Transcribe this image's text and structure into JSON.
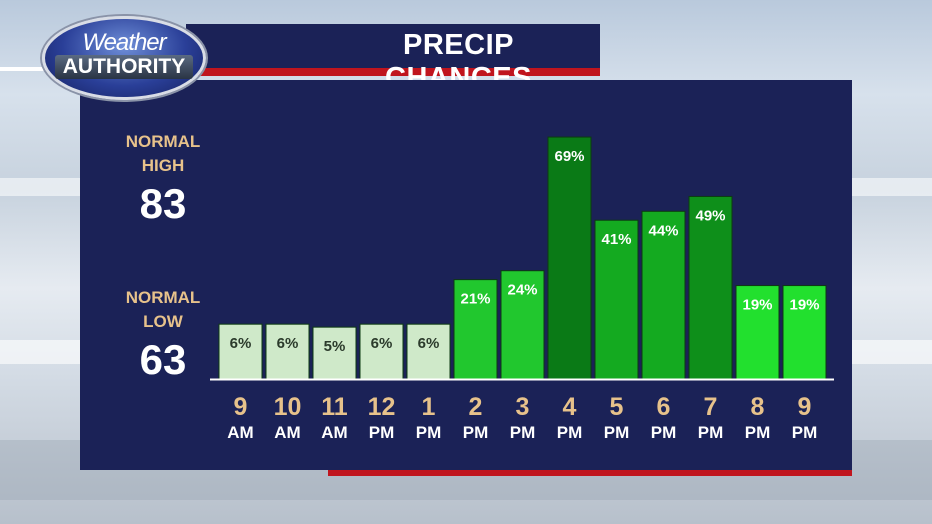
{
  "logo": {
    "line1": "Weather",
    "line2": "AUTHORITY"
  },
  "title": "PRECIP CHANCES",
  "normals": {
    "high_label_1": "NORMAL",
    "high_label_2": "HIGH",
    "high_value": "83",
    "low_label_1": "NORMAL",
    "low_label_2": "LOW",
    "low_value": "63"
  },
  "colors": {
    "panel": "#1b2257",
    "accent_red": "#c0151e",
    "label_gold": "#e7c28b"
  },
  "chart_data": {
    "type": "bar",
    "title": "PRECIP CHANCES",
    "categories": [
      [
        "9",
        "AM"
      ],
      [
        "10",
        "AM"
      ],
      [
        "11",
        "AM"
      ],
      [
        "12",
        "PM"
      ],
      [
        "1",
        "PM"
      ],
      [
        "2",
        "PM"
      ],
      [
        "3",
        "PM"
      ],
      [
        "4",
        "PM"
      ],
      [
        "5",
        "PM"
      ],
      [
        "6",
        "PM"
      ],
      [
        "7",
        "PM"
      ],
      [
        "8",
        "PM"
      ],
      [
        "9",
        "PM"
      ]
    ],
    "values": [
      6,
      6,
      5,
      6,
      6,
      21,
      24,
      69,
      41,
      44,
      49,
      19,
      19
    ],
    "value_labels": [
      "6%",
      "6%",
      "5%",
      "6%",
      "6%",
      "21%",
      "24%",
      "69%",
      "41%",
      "44%",
      "49%",
      "19%",
      "19%"
    ],
    "bar_colors": [
      "#cfe9c9",
      "#cfe9c9",
      "#cfe9c9",
      "#cfe9c9",
      "#cfe9c9",
      "#21c72e",
      "#21c72e",
      "#0a7a16",
      "#14aa20",
      "#14aa20",
      "#0e8f1a",
      "#22e02e",
      "#22e02e"
    ],
    "ylim": [
      0,
      100
    ],
    "grid": false,
    "legend": "none"
  }
}
